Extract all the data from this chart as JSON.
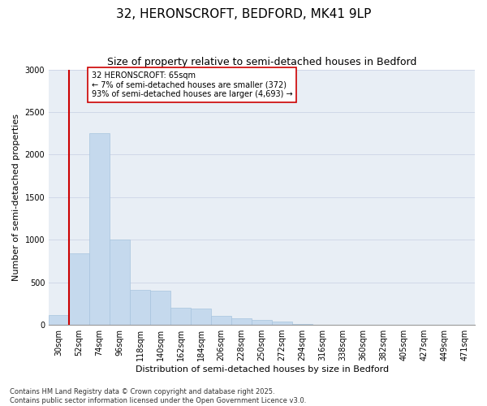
{
  "title_line1": "32, HERONSCROFT, BEDFORD, MK41 9LP",
  "title_line2": "Size of property relative to semi-detached houses in Bedford",
  "xlabel": "Distribution of semi-detached houses by size in Bedford",
  "ylabel": "Number of semi-detached properties",
  "categories": [
    "30sqm",
    "52sqm",
    "74sqm",
    "96sqm",
    "118sqm",
    "140sqm",
    "162sqm",
    "184sqm",
    "206sqm",
    "228sqm",
    "250sqm",
    "272sqm",
    "294sqm",
    "316sqm",
    "338sqm",
    "360sqm",
    "382sqm",
    "405sqm",
    "427sqm",
    "449sqm",
    "471sqm"
  ],
  "values": [
    120,
    840,
    2250,
    1000,
    410,
    405,
    200,
    195,
    105,
    75,
    60,
    35,
    8,
    5,
    3,
    2,
    2,
    1,
    1,
    1,
    0
  ],
  "bar_color": "#c5d9ed",
  "bar_edge_color": "#a8c4de",
  "vline_color": "#cc0000",
  "annotation_text": "32 HERONSCROFT: 65sqm\n← 7% of semi-detached houses are smaller (372)\n93% of semi-detached houses are larger (4,693) →",
  "annotation_box_color": "#ffffff",
  "annotation_box_edge": "#cc0000",
  "ylim": [
    0,
    3000
  ],
  "yticks": [
    0,
    500,
    1000,
    1500,
    2000,
    2500,
    3000
  ],
  "grid_color": "#d0d8e8",
  "background_color": "#e8eef5",
  "footer_text": "Contains HM Land Registry data © Crown copyright and database right 2025.\nContains public sector information licensed under the Open Government Licence v3.0.",
  "title_fontsize": 11,
  "subtitle_fontsize": 9,
  "axis_label_fontsize": 8,
  "tick_fontsize": 7,
  "annotation_fontsize": 7,
  "footer_fontsize": 6
}
